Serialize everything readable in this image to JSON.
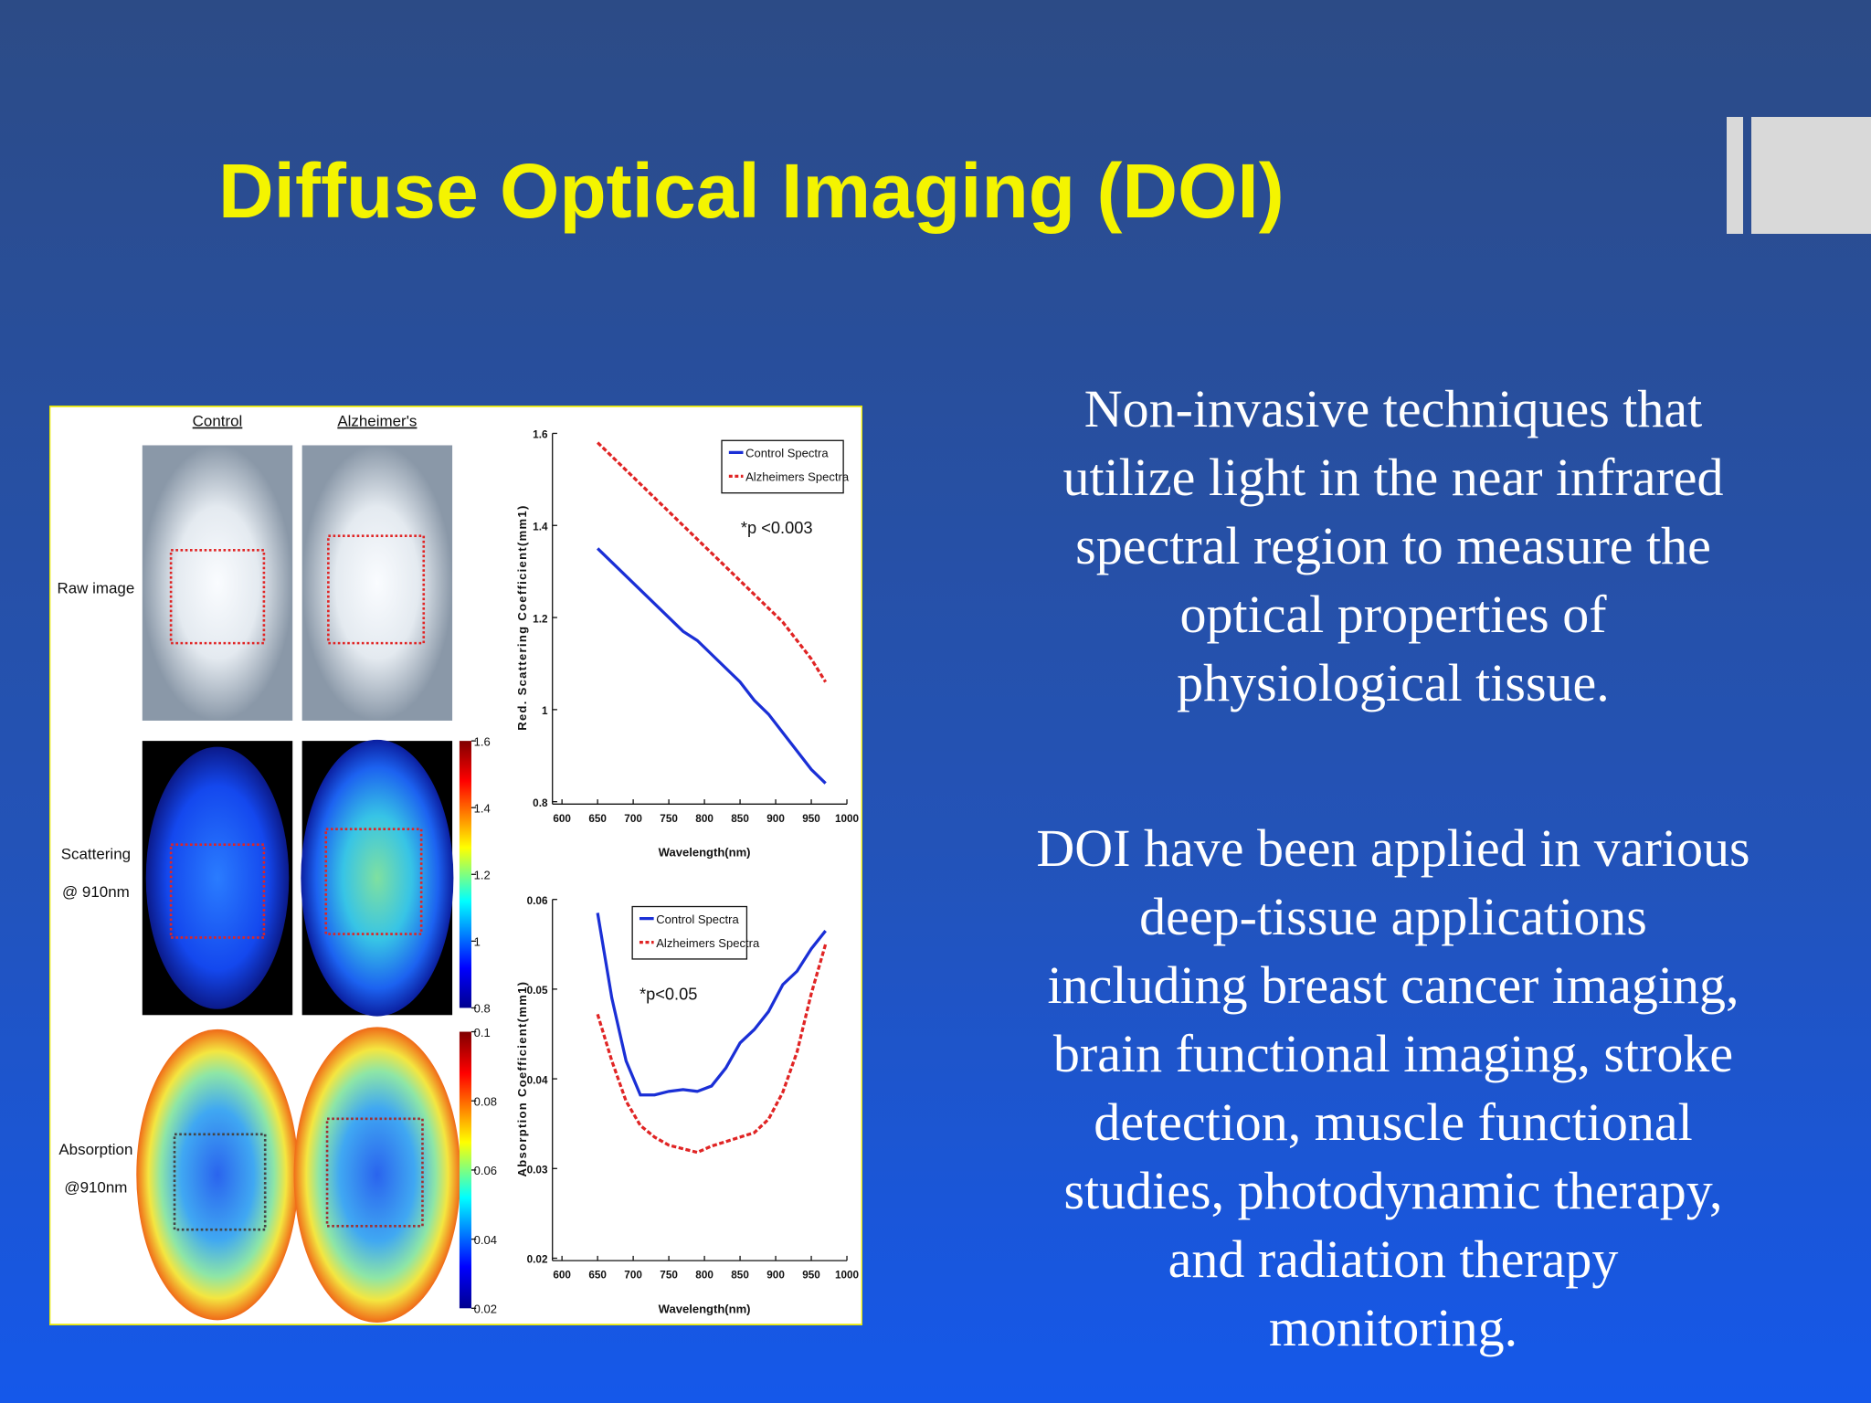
{
  "slide": {
    "title": "Diffuse Optical Imaging (DOI)",
    "paragraphs": [
      [
        "Non-invasive techniques that",
        "utilize light in the near infrared",
        "spectral region to measure the",
        "optical properties of",
        "physiological tissue."
      ],
      [
        "DOI have been applied in various",
        "deep-tissue applications",
        "including breast cancer imaging,",
        "brain functional imaging, stroke",
        "detection, muscle functional",
        "studies, photodynamic therapy,",
        "and radiation therapy",
        "monitoring."
      ]
    ]
  },
  "figure": {
    "column_labels": [
      "Control",
      "Alzheimer's"
    ],
    "row_labels": [
      [
        "Raw image"
      ],
      [
        "Scattering",
        "@ 910nm"
      ],
      [
        "Absorption",
        "@910nm"
      ]
    ],
    "colorbars": [
      {
        "lim": [
          0.8,
          1.6
        ],
        "ticks": [
          1.6,
          1.4,
          1.2,
          1,
          0.8
        ]
      },
      {
        "lim": [
          0.02,
          0.1
        ],
        "ticks": [
          0.1,
          0.08,
          0.06,
          0.04,
          0.02
        ]
      }
    ],
    "charts": [
      {
        "type": "line",
        "ylabel": "Red. Scattering Coefficient(mm1)",
        "xlabel": "Wavelength(nm)",
        "annotation": "*p <0.003",
        "x": [
          650,
          670,
          690,
          710,
          730,
          750,
          770,
          790,
          810,
          830,
          850,
          870,
          890,
          910,
          930,
          950,
          970
        ],
        "xlim": [
          600,
          1000
        ],
        "xticks": [
          600,
          650,
          700,
          750,
          800,
          850,
          900,
          950,
          1000
        ],
        "ylim": [
          0.8,
          1.6
        ],
        "yticks": [
          0.8,
          1,
          1.2,
          1.4,
          1.6
        ],
        "series": [
          {
            "name": "Control Spectra",
            "color": "#1a2fd6",
            "values": [
              1.35,
              1.32,
              1.29,
              1.26,
              1.23,
              1.2,
              1.17,
              1.15,
              1.12,
              1.09,
              1.06,
              1.02,
              0.99,
              0.95,
              0.91,
              0.87,
              0.84
            ]
          },
          {
            "name": "Alzheimers Spectra",
            "color": "#e02424",
            "values": [
              1.58,
              1.55,
              1.52,
              1.49,
              1.46,
              1.43,
              1.4,
              1.37,
              1.34,
              1.31,
              1.28,
              1.25,
              1.22,
              1.19,
              1.15,
              1.11,
              1.06
            ]
          }
        ]
      },
      {
        "type": "line",
        "ylabel": "Absorption Coefficient(mm1)",
        "xlabel": "Wavelength(nm)",
        "annotation": "*p<0.05",
        "x": [
          650,
          670,
          690,
          710,
          730,
          750,
          770,
          790,
          810,
          830,
          850,
          870,
          890,
          910,
          930,
          950,
          970
        ],
        "xlim": [
          600,
          1000
        ],
        "xticks": [
          600,
          650,
          700,
          750,
          800,
          850,
          900,
          950,
          1000
        ],
        "ylim": [
          0.02,
          0.06
        ],
        "yticks": [
          0.02,
          0.03,
          0.04,
          0.05,
          0.06
        ],
        "series": [
          {
            "name": "Control Spectra",
            "color": "#1a2fd6",
            "values": [
              0.0585,
              0.049,
              0.042,
              0.0382,
              0.0382,
              0.0386,
              0.0388,
              0.0386,
              0.0392,
              0.0412,
              0.044,
              0.0455,
              0.0475,
              0.0505,
              0.052,
              0.0545,
              0.0565
            ]
          },
          {
            "name": "Alzheimers Spectra",
            "color": "#e02424",
            "values": [
              0.0472,
              0.042,
              0.0375,
              0.0348,
              0.0335,
              0.0326,
              0.0322,
              0.0318,
              0.0325,
              0.033,
              0.0335,
              0.034,
              0.0355,
              0.0385,
              0.043,
              0.0495,
              0.055
            ]
          }
        ]
      }
    ]
  }
}
